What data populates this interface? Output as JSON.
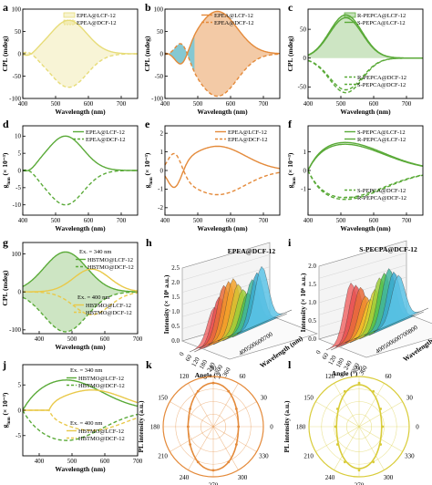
{
  "colors": {
    "yellow": "#e7dc78",
    "orange": "#e48a3a",
    "green": "#5aaa38",
    "cyan": "#55c7e6"
  },
  "chart_data": [
    {
      "panel": "a",
      "type": "line",
      "xlabel": "Wavelength (nm)",
      "ylabel": "CPL (mdeg)",
      "xlim": [
        400,
        750
      ],
      "xticks": [
        400,
        500,
        600,
        700
      ],
      "yticks": [
        -100,
        -50,
        0,
        50,
        100
      ],
      "ylim": [
        -100,
        100
      ],
      "series": [
        {
          "name": "EPEA@LCF-12",
          "peak_x": 540,
          "peak_y": 75,
          "style": "solid",
          "fill": true
        },
        {
          "name": "EPEA@DCF-12",
          "peak_x": 540,
          "peak_y": -75,
          "style": "dashed",
          "fill": true
        }
      ]
    },
    {
      "panel": "b",
      "type": "line",
      "xlabel": "Wavelength (nm)",
      "ylabel": "CPL (mdeg)",
      "xlim": [
        400,
        750
      ],
      "xticks": [
        400,
        500,
        600,
        700
      ],
      "yticks": [
        -100,
        -50,
        0,
        50,
        100
      ],
      "ylim": [
        -100,
        100
      ],
      "series": [
        {
          "name": "EPEA@LCF-12",
          "peak_x": 560,
          "peak_y": 95,
          "style": "solid",
          "fill": true
        },
        {
          "name": "EPEA@DCF-12",
          "peak_x": 560,
          "peak_y": -95,
          "style": "dashed",
          "fill": true
        }
      ]
    },
    {
      "panel": "c",
      "type": "line",
      "xlabel": "Wavelength (nm)",
      "ylabel": "CPL (mdeg)",
      "xlim": [
        400,
        750
      ],
      "xticks": [
        400,
        500,
        600,
        700
      ],
      "yticks": [
        -50,
        0,
        50
      ],
      "ylim": [
        -70,
        85
      ],
      "series": [
        {
          "name": "R-PEPCA@LCF-12",
          "peak_x": 515,
          "peak_y": 75,
          "style": "solid",
          "fill": true
        },
        {
          "name": "S-PEPCA@LCF-12",
          "peak_x": 515,
          "peak_y": 70,
          "style": "solid"
        },
        {
          "name": "R-PEPCA@DCF-12",
          "peak_x": 515,
          "peak_y": -60,
          "style": "dashed"
        },
        {
          "name": "S-PEPCA@DCF-12",
          "peak_x": 515,
          "peak_y": -55,
          "style": "dashed"
        }
      ]
    },
    {
      "panel": "d",
      "type": "line",
      "xlabel": "Wavelength (nm)",
      "xlim": [
        400,
        750
      ],
      "xticks": [
        400,
        500,
        600,
        700
      ],
      "yticks": [
        -10,
        -5,
        0,
        5,
        10
      ],
      "ylim": [
        -13,
        13
      ],
      "series": [
        {
          "name": "EPEA@LCF-12",
          "peak_x": 530,
          "peak_y": 10,
          "style": "solid"
        },
        {
          "name": "EPEA@DCF-12",
          "peak_x": 530,
          "peak_y": -10,
          "style": "dashed"
        }
      ]
    },
    {
      "panel": "e",
      "type": "line",
      "xlabel": "Wavelength (nm)",
      "xlim": [
        400,
        750
      ],
      "xticks": [
        400,
        500,
        600,
        700
      ],
      "yticks": [
        -2,
        -1,
        0,
        1,
        2
      ],
      "ylim": [
        -2.4,
        2.4
      ],
      "series": [
        {
          "name": "EPEA@LCF-12",
          "peak_x": 560,
          "peak_y": 1.3,
          "style": "solid"
        },
        {
          "name": "EPEA@DCF-12",
          "peak_x": 560,
          "peak_y": -1.3,
          "style": "dashed"
        }
      ]
    },
    {
      "panel": "f",
      "type": "line",
      "xlabel": "Wavelength (nm)",
      "xlim": [
        400,
        750
      ],
      "xticks": [
        400,
        500,
        600,
        700
      ],
      "yticks": [
        -1,
        0,
        1
      ],
      "ylim": [
        -2.4,
        2.4
      ],
      "series": [
        {
          "name": "S-PEPCA@LCF-12",
          "peak_x": 500,
          "peak_y": 1.55,
          "style": "solid"
        },
        {
          "name": "R-PEPCA@LCF-12",
          "peak_x": 500,
          "peak_y": 1.45,
          "style": "solid"
        },
        {
          "name": "S-PEPCA@DCF-12",
          "peak_x": 500,
          "peak_y": -1.5,
          "style": "dashed"
        },
        {
          "name": "R-PEPCA@DCF-12",
          "peak_x": 500,
          "peak_y": -1.6,
          "style": "dashed"
        }
      ]
    },
    {
      "panel": "g",
      "type": "line",
      "xlabel": "Wavelength (nm)",
      "ylabel": "CPL (mdeg)",
      "xlim": [
        350,
        700
      ],
      "xticks": [
        400,
        500,
        600,
        700
      ],
      "yticks": [
        -100,
        0,
        100
      ],
      "ylim": [
        -110,
        130
      ],
      "series": [
        {
          "name": "HBTMO@LCF-12",
          "group": "Ex. = 340 nm",
          "peak_x": 480,
          "peak_y": 105,
          "style": "solid",
          "fill": true
        },
        {
          "name": "HBTMO@DCF-12",
          "group": "Ex. = 340 nm",
          "peak_x": 480,
          "peak_y": -105,
          "style": "dashed",
          "fill": true
        },
        {
          "name": "HBTMO@LCF-12",
          "group": "Ex. = 400 nm",
          "peak_x": 560,
          "peak_y": 60,
          "style": "solid"
        },
        {
          "name": "HBTMO@DCF-12",
          "group": "Ex. = 400 nm",
          "peak_x": 560,
          "peak_y": -60,
          "style": "dashed"
        }
      ]
    },
    {
      "panel": "j",
      "type": "line",
      "xlabel": "Wavelength (nm)",
      "xlim": [
        350,
        700
      ],
      "xticks": [
        400,
        500,
        600,
        700
      ],
      "yticks": [
        -5,
        0,
        5
      ],
      "ylim": [
        -9,
        9
      ],
      "series": [
        {
          "name": "HBTMO@LCF-12",
          "group": "Ex. = 340 nm",
          "peak_x": 480,
          "peak_y": 6,
          "style": "solid"
        },
        {
          "name": "HBTMO@DCF-12",
          "group": "Ex. = 340 nm",
          "peak_x": 480,
          "peak_y": -6,
          "style": "dashed"
        },
        {
          "name": "HBTMO@LCF-12",
          "group": "Ex. = 400 nm",
          "peak_x": 560,
          "peak_y": 4,
          "style": "solid"
        },
        {
          "name": "HBTMO@DCF-12",
          "group": "Ex. = 400 nm",
          "peak_x": 560,
          "peak_y": -4,
          "style": "dashed"
        }
      ]
    },
    {
      "panel": "h",
      "type": "area",
      "title": "EPEA@DCF-12",
      "zlabel": "Intensity (× 10⁶ a.u.)",
      "anglelabel": "Angle (°)",
      "wavelabel": "Wavelength (nm)",
      "zticks": [
        "0.0",
        "0.5",
        "1.0",
        "1.5",
        "2.0",
        "2.5"
      ],
      "angleticks": [
        "0",
        "60",
        "120",
        "180",
        "240",
        "300",
        "360"
      ],
      "waveticks": [
        "400",
        "500",
        "600",
        "700"
      ]
    },
    {
      "panel": "i",
      "type": "area",
      "title": "S-PECPA@DCF-12",
      "zlabel": "Intensity (× 10⁶ a.u.)",
      "anglelabel": "Angle (°)",
      "wavelabel": "Wavelength",
      "zticks": [
        "0.0",
        "0.5",
        "1.0",
        "1.5",
        "2.0"
      ],
      "angleticks": [
        "0",
        "60",
        "120",
        "180",
        "240",
        "300",
        "360"
      ],
      "waveticks": [
        "400",
        "500",
        "600",
        "700",
        "800"
      ]
    },
    {
      "panel": "k",
      "type": "polar",
      "ylabel": "PL intensity (a.u.)",
      "angles": [
        "0",
        "30",
        "60",
        "90",
        "120",
        "150",
        "180",
        "210",
        "240",
        "270",
        "300",
        "330"
      ],
      "shape": "peanut-vertical",
      "color": "#e48a3a"
    },
    {
      "panel": "l",
      "type": "polar",
      "ylabel": "PL intensity (a.u.)",
      "angles": [
        "0",
        "30",
        "60",
        "90",
        "120",
        "150",
        "180",
        "210",
        "240",
        "270",
        "300",
        "330"
      ],
      "shape": "peanut-vertical",
      "color": "#d9cc3a"
    }
  ],
  "g_ylabel": "g",
  "g_sub": "lum",
  "g_unit": "(× 10⁻³)",
  "labels": {
    "g_ex340": "Ex. = 340 nm",
    "g_ex400": "Ex. = 400 nm"
  }
}
